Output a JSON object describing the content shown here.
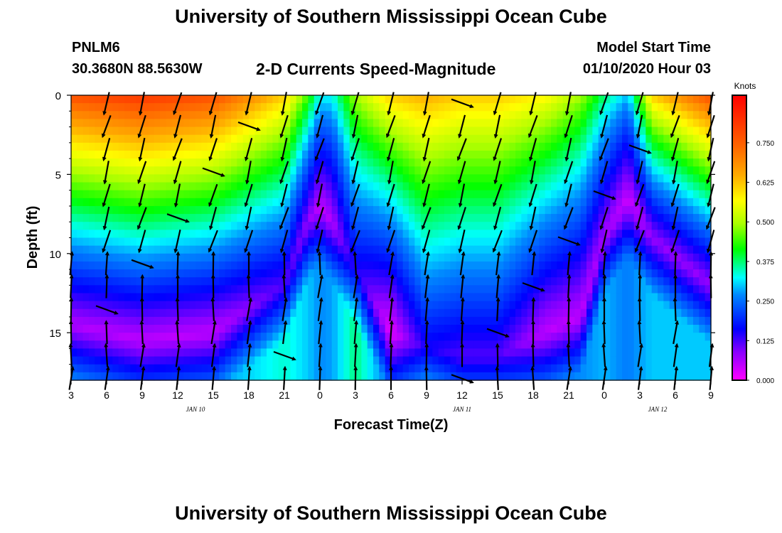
{
  "header": {
    "title": "University of Southern Mississippi Ocean Cube",
    "station": "PNLM6",
    "coords": "30.3680N 88.5630W",
    "subtitle": "2-D Currents Speed-Magnitude",
    "model_start_label": "Model Start Time",
    "model_start_value": "01/10/2020 Hour 03"
  },
  "footer": {
    "title": "University of Southern Mississippi Ocean Cube"
  },
  "chart_data": {
    "type": "heatmap",
    "title": "2-D Currents Speed-Magnitude",
    "xlabel": "Forecast Time(Z)",
    "ylabel": "Depth (ft)",
    "x_hours": [
      0,
      54
    ],
    "ylim": [
      0,
      18
    ],
    "y_ticks": [
      0,
      5,
      10,
      15
    ],
    "x_tick_labels": [
      "3",
      "6",
      "9",
      "12",
      "15",
      "18",
      "21",
      "0",
      "3",
      "6",
      "9",
      "12",
      "15",
      "18",
      "21",
      "0",
      "3",
      "6",
      "9"
    ],
    "x_tick_hours": [
      0,
      3,
      6,
      9,
      12,
      15,
      18,
      21,
      24,
      27,
      30,
      33,
      36,
      39,
      42,
      45,
      48,
      51,
      54
    ],
    "date_labels": [
      {
        "text": "JAN 10",
        "hour": 10.5
      },
      {
        "text": "JAN 11",
        "hour": 33
      },
      {
        "text": "JAN 12",
        "hour": 49.5
      }
    ],
    "colorbar": {
      "label": "Knots",
      "min": 0,
      "max": 0.9,
      "ticks": [
        "0.000",
        "0.125",
        "0.250",
        "0.375",
        "0.500",
        "0.625",
        "0.750"
      ]
    },
    "speed_profiles": [
      {
        "hour": 0,
        "surface": 0.78,
        "min_speed": 0.06,
        "min_depth": 14.5
      },
      {
        "hour": 6,
        "surface": 0.82,
        "min_speed": 0.05,
        "min_depth": 15.5
      },
      {
        "hour": 12,
        "surface": 0.78,
        "min_speed": 0.05,
        "min_depth": 15
      },
      {
        "hour": 18,
        "surface": 0.62,
        "min_speed": 0.12,
        "min_depth": 12
      },
      {
        "hour": 20,
        "surface": 0.45,
        "min_speed": 0.08,
        "min_depth": 8
      },
      {
        "hour": 21,
        "surface": 0.33,
        "min_speed": 0.05,
        "min_depth": 7
      },
      {
        "hour": 22,
        "surface": 0.33,
        "min_speed": 0.06,
        "min_depth": 8
      },
      {
        "hour": 24,
        "surface": 0.5,
        "min_speed": 0.15,
        "min_depth": 11
      },
      {
        "hour": 27,
        "surface": 0.62,
        "min_speed": 0.02,
        "min_depth": 15
      },
      {
        "hour": 30,
        "surface": 0.65,
        "min_speed": 0.15,
        "min_depth": 16
      },
      {
        "hour": 33,
        "surface": 0.62,
        "min_speed": 0.12,
        "min_depth": 16.5
      },
      {
        "hour": 36,
        "surface": 0.62,
        "min_speed": 0.12,
        "min_depth": 16.5
      },
      {
        "hour": 40,
        "surface": 0.58,
        "min_speed": 0.05,
        "min_depth": 15
      },
      {
        "hour": 43,
        "surface": 0.5,
        "min_speed": 0.05,
        "min_depth": 14
      },
      {
        "hour": 45,
        "surface": 0.38,
        "min_speed": 0.07,
        "min_depth": 9
      },
      {
        "hour": 47,
        "surface": 0.3,
        "min_speed": 0.04,
        "min_depth": 6.5
      },
      {
        "hour": 49,
        "surface": 0.62,
        "min_speed": 0.08,
        "min_depth": 9
      },
      {
        "hour": 54,
        "surface": 0.78,
        "min_speed": 0.08,
        "min_depth": 12
      }
    ]
  }
}
